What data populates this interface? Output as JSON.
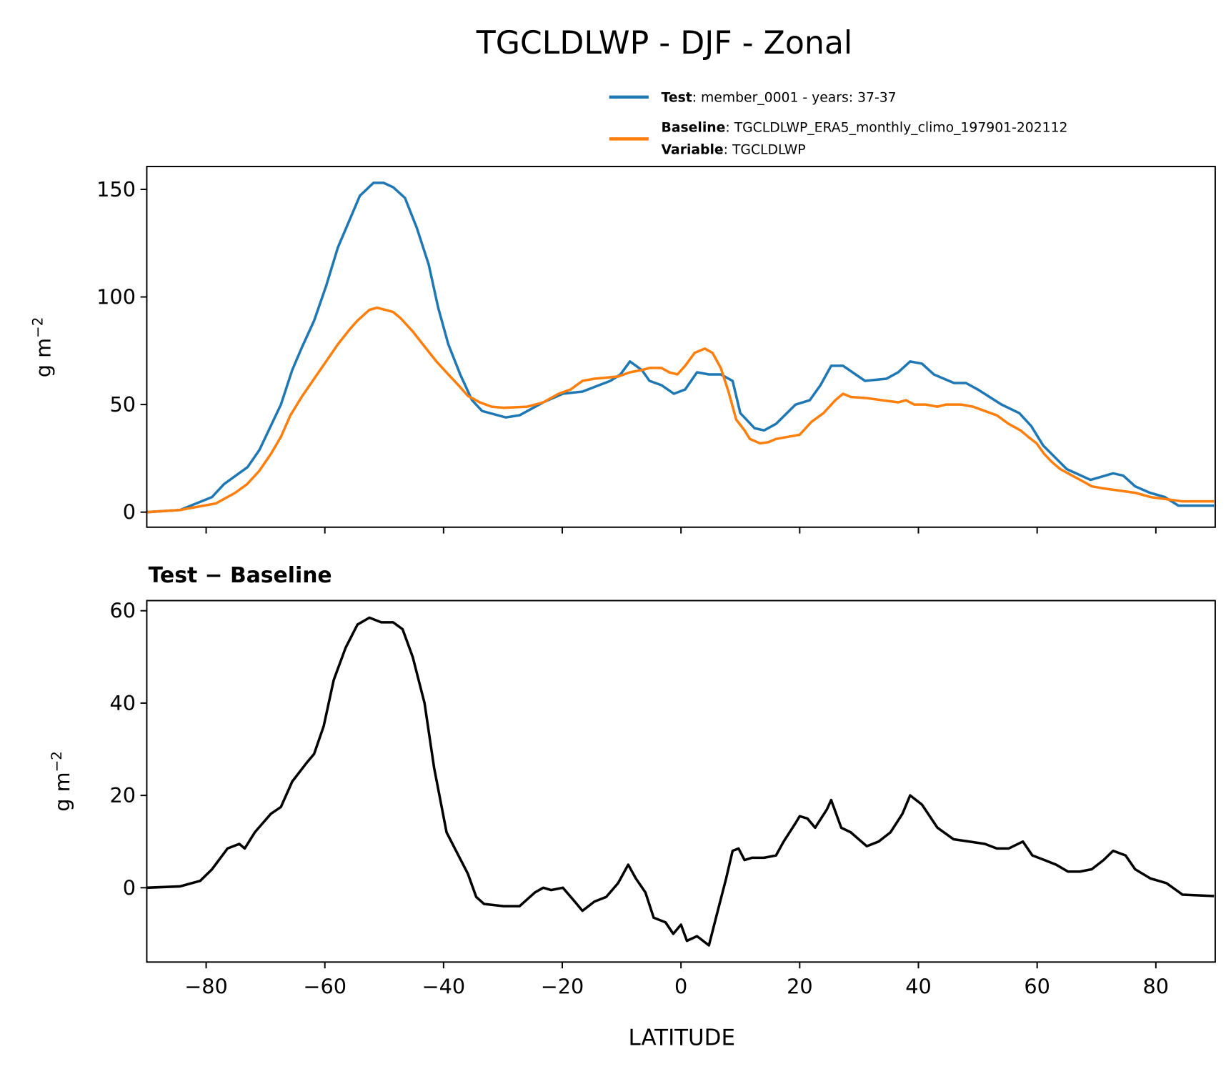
{
  "chart_data": [
    {
      "type": "line",
      "title": "TGCLDLWP - DJF - Zonal",
      "xlabel": "",
      "ylabel": "g m",
      "ylabel_exponent": "−2",
      "xlim": [
        -90,
        90
      ],
      "ylim": [
        -7,
        160.6
      ],
      "xticks": [
        -80,
        -60,
        -40,
        -20,
        0,
        20,
        40,
        60,
        80
      ],
      "yticks": [
        0,
        50,
        100,
        150
      ],
      "legend_placement": "above-top-right",
      "legend": [
        {
          "bold": "Test",
          "text": ": member_0001 - years: 37-37",
          "color": "#1f77b4"
        },
        {
          "bold": "Baseline",
          "text": ": TGCLDLWP_ERA5_monthly_climo_197901-202112",
          "bold2": "Variable",
          "text2": ": TGCLDLWP",
          "color": "#ff7f0e"
        }
      ],
      "series": [
        {
          "name": "Test",
          "color": "#1f77b4",
          "points": [
            [
              -90,
              0
            ],
            [
              -84.4,
              1
            ],
            [
              -79,
              7
            ],
            [
              -77,
              13
            ],
            [
              -73,
              21
            ],
            [
              -71,
              29
            ],
            [
              -67.4,
              50
            ],
            [
              -65.5,
              66
            ],
            [
              -63.8,
              77
            ],
            [
              -61.8,
              89
            ],
            [
              -59.8,
              105
            ],
            [
              -57.8,
              123
            ],
            [
              -54.1,
              147
            ],
            [
              -51.8,
              153
            ],
            [
              -50.1,
              153
            ],
            [
              -48.5,
              151
            ],
            [
              -46.5,
              146
            ],
            [
              -44.5,
              132
            ],
            [
              -42.5,
              115
            ],
            [
              -40.9,
              95
            ],
            [
              -39.2,
              78
            ],
            [
              -37.2,
              64
            ],
            [
              -35.2,
              52
            ],
            [
              -33.5,
              47
            ],
            [
              -29.5,
              44
            ],
            [
              -27.2,
              45
            ],
            [
              -23.2,
              51
            ],
            [
              -19.9,
              55
            ],
            [
              -16.6,
              56
            ],
            [
              -11.9,
              61
            ],
            [
              -10.2,
              64
            ],
            [
              -8.6,
              70
            ],
            [
              -6.6,
              66
            ],
            [
              -5.3,
              61
            ],
            [
              -3.3,
              59
            ],
            [
              -1.2,
              55
            ],
            [
              0.7,
              57
            ],
            [
              2.7,
              65
            ],
            [
              4.7,
              64
            ],
            [
              6.7,
              64
            ],
            [
              8.7,
              61
            ],
            [
              10,
              46
            ],
            [
              12.4,
              39
            ],
            [
              14,
              38
            ],
            [
              16,
              41
            ],
            [
              19.3,
              50
            ],
            [
              21.7,
              52
            ],
            [
              23.5,
              59
            ],
            [
              25.3,
              68
            ],
            [
              27.3,
              68
            ],
            [
              31,
              61
            ],
            [
              34.6,
              62
            ],
            [
              36.6,
              65
            ],
            [
              38.6,
              70
            ],
            [
              40.6,
              69
            ],
            [
              42.6,
              64
            ],
            [
              46,
              60
            ],
            [
              48,
              60
            ],
            [
              50,
              57
            ],
            [
              54,
              50
            ],
            [
              57,
              46
            ],
            [
              59,
              40
            ],
            [
              61,
              31
            ],
            [
              65,
              20
            ],
            [
              69,
              15
            ],
            [
              72.8,
              18
            ],
            [
              74.5,
              17
            ],
            [
              76.5,
              12
            ],
            [
              79,
              9
            ],
            [
              81.5,
              7
            ],
            [
              83.8,
              3
            ],
            [
              89.8,
              3
            ]
          ]
        },
        {
          "name": "Baseline",
          "color": "#ff7f0e",
          "points": [
            [
              -90,
              0
            ],
            [
              -84.4,
              1
            ],
            [
              -80.4,
              3
            ],
            [
              -78.4,
              4
            ],
            [
              -75.1,
              9
            ],
            [
              -73.1,
              13
            ],
            [
              -71.1,
              19
            ],
            [
              -69.1,
              27
            ],
            [
              -67.4,
              35
            ],
            [
              -65.8,
              45
            ],
            [
              -63.8,
              54
            ],
            [
              -61.8,
              62
            ],
            [
              -59.8,
              70
            ],
            [
              -57.8,
              78
            ],
            [
              -55.8,
              85
            ],
            [
              -54.5,
              89
            ],
            [
              -52.5,
              94
            ],
            [
              -51.2,
              95
            ],
            [
              -48.5,
              93
            ],
            [
              -47.2,
              90
            ],
            [
              -45.2,
              84
            ],
            [
              -43.2,
              77
            ],
            [
              -41.2,
              70
            ],
            [
              -39.2,
              64
            ],
            [
              -37.5,
              59
            ],
            [
              -35.9,
              54
            ],
            [
              -33.9,
              51
            ],
            [
              -31.9,
              49
            ],
            [
              -29.9,
              48.5
            ],
            [
              -25.9,
              49
            ],
            [
              -23.2,
              51
            ],
            [
              -20.6,
              55
            ],
            [
              -18.6,
              57
            ],
            [
              -16.6,
              61
            ],
            [
              -14.6,
              62
            ],
            [
              -12.6,
              62.5
            ],
            [
              -10.6,
              63
            ],
            [
              -8.6,
              65
            ],
            [
              -6.6,
              66
            ],
            [
              -5.3,
              67
            ],
            [
              -3.3,
              67
            ],
            [
              -2,
              65
            ],
            [
              -0.6,
              64
            ],
            [
              0.7,
              68
            ],
            [
              2.3,
              74
            ],
            [
              4,
              76
            ],
            [
              5.3,
              74
            ],
            [
              6.7,
              67
            ],
            [
              8,
              56
            ],
            [
              9.3,
              43
            ],
            [
              10.7,
              38
            ],
            [
              11.6,
              34
            ],
            [
              13.3,
              32
            ],
            [
              14.7,
              32.5
            ],
            [
              16,
              34
            ],
            [
              18,
              35
            ],
            [
              20,
              36
            ],
            [
              22,
              42
            ],
            [
              24,
              46
            ],
            [
              26,
              52
            ],
            [
              27.3,
              55
            ],
            [
              28.6,
              53.5
            ],
            [
              31.3,
              53
            ],
            [
              33.9,
              52
            ],
            [
              36.6,
              51
            ],
            [
              37.9,
              52
            ],
            [
              39.3,
              50
            ],
            [
              41.2,
              50
            ],
            [
              43.2,
              49
            ],
            [
              44.6,
              50
            ],
            [
              47.2,
              50
            ],
            [
              49.2,
              49
            ],
            [
              51.2,
              47
            ],
            [
              53.2,
              45
            ],
            [
              55.2,
              41
            ],
            [
              57.2,
              38
            ],
            [
              58.5,
              35
            ],
            [
              59.9,
              32
            ],
            [
              61.2,
              27
            ],
            [
              62.6,
              23
            ],
            [
              63.9,
              20
            ],
            [
              65.9,
              17
            ],
            [
              67.9,
              14
            ],
            [
              69.2,
              12
            ],
            [
              71.2,
              11
            ],
            [
              73.8,
              10
            ],
            [
              76.5,
              9
            ],
            [
              79.1,
              7
            ],
            [
              81.8,
              6
            ],
            [
              84.5,
              5
            ],
            [
              89.8,
              5
            ]
          ]
        }
      ]
    },
    {
      "type": "line",
      "title": "Test − Baseline",
      "xlabel": "LATITUDE",
      "ylabel": "g m",
      "ylabel_exponent": "−2",
      "xlim": [
        -90,
        90
      ],
      "ylim": [
        -16.1,
        62.2
      ],
      "xticks": [
        -80,
        -60,
        -40,
        -20,
        0,
        20,
        40,
        60,
        80
      ],
      "xticklabels": [
        "−80",
        "−60",
        "−40",
        "−20",
        "0",
        "20",
        "40",
        "60",
        "80"
      ],
      "yticks": [
        0,
        20,
        40,
        60
      ],
      "series": [
        {
          "name": "Test − Baseline",
          "color": "#000000",
          "points": [
            [
              -90,
              0
            ],
            [
              -84.4,
              0.3
            ],
            [
              -81,
              1.5
            ],
            [
              -79,
              4
            ],
            [
              -76.4,
              8.5
            ],
            [
              -74.4,
              9.5
            ],
            [
              -73.5,
              8.5
            ],
            [
              -71.8,
              12
            ],
            [
              -69.1,
              16
            ],
            [
              -67.4,
              17.5
            ],
            [
              -65.5,
              23
            ],
            [
              -63.1,
              27
            ],
            [
              -61.8,
              29
            ],
            [
              -60.2,
              35
            ],
            [
              -58.5,
              45
            ],
            [
              -56.5,
              52
            ],
            [
              -54.5,
              57
            ],
            [
              -52.5,
              58.5
            ],
            [
              -50.5,
              57.5
            ],
            [
              -48.5,
              57.5
            ],
            [
              -46.9,
              56
            ],
            [
              -45.2,
              50
            ],
            [
              -43.2,
              40
            ],
            [
              -41.6,
              26
            ],
            [
              -39.5,
              12
            ],
            [
              -37.9,
              8
            ],
            [
              -35.9,
              3
            ],
            [
              -34.5,
              -2
            ],
            [
              -33.2,
              -3.5
            ],
            [
              -29.9,
              -4
            ],
            [
              -27.2,
              -4
            ],
            [
              -24.6,
              -1
            ],
            [
              -23.2,
              0
            ],
            [
              -21.9,
              -0.5
            ],
            [
              -19.9,
              0
            ],
            [
              -17.9,
              -3
            ],
            [
              -16.6,
              -5
            ],
            [
              -14.6,
              -3
            ],
            [
              -12.6,
              -2
            ],
            [
              -10.6,
              1
            ],
            [
              -8.9,
              5
            ],
            [
              -7.6,
              2
            ],
            [
              -6,
              -1
            ],
            [
              -4.6,
              -6.5
            ],
            [
              -2.6,
              -7.5
            ],
            [
              -1.3,
              -10
            ],
            [
              0,
              -8
            ],
            [
              1,
              -11.5
            ],
            [
              2.7,
              -10.5
            ],
            [
              4.7,
              -12.5
            ],
            [
              6,
              -6
            ],
            [
              7.6,
              2
            ],
            [
              8.7,
              8
            ],
            [
              9.7,
              8.5
            ],
            [
              10.7,
              6
            ],
            [
              12,
              6.5
            ],
            [
              14,
              6.5
            ],
            [
              16,
              7
            ],
            [
              17.3,
              10
            ],
            [
              19.3,
              14
            ],
            [
              20,
              15.5
            ],
            [
              21.3,
              15
            ],
            [
              22.6,
              13
            ],
            [
              24.6,
              17
            ],
            [
              25.3,
              19
            ],
            [
              27,
              13
            ],
            [
              28.6,
              12
            ],
            [
              31.3,
              9
            ],
            [
              33.3,
              10
            ],
            [
              35.3,
              12
            ],
            [
              37.3,
              16
            ],
            [
              38.6,
              20
            ],
            [
              40.6,
              18
            ],
            [
              43.2,
              13
            ],
            [
              45.9,
              10.5
            ],
            [
              48.6,
              10
            ],
            [
              51.2,
              9.5
            ],
            [
              53.2,
              8.5
            ],
            [
              55.2,
              8.5
            ],
            [
              57.6,
              10
            ],
            [
              59.2,
              7
            ],
            [
              61.2,
              6
            ],
            [
              63.2,
              5
            ],
            [
              65.2,
              3.5
            ],
            [
              67.2,
              3.5
            ],
            [
              69.2,
              4
            ],
            [
              71.2,
              6
            ],
            [
              72.8,
              8
            ],
            [
              74.9,
              7
            ],
            [
              76.5,
              4
            ],
            [
              79.1,
              2
            ],
            [
              81.8,
              1
            ],
            [
              84.5,
              -1.5
            ],
            [
              89.8,
              -1.8
            ]
          ]
        }
      ]
    }
  ]
}
